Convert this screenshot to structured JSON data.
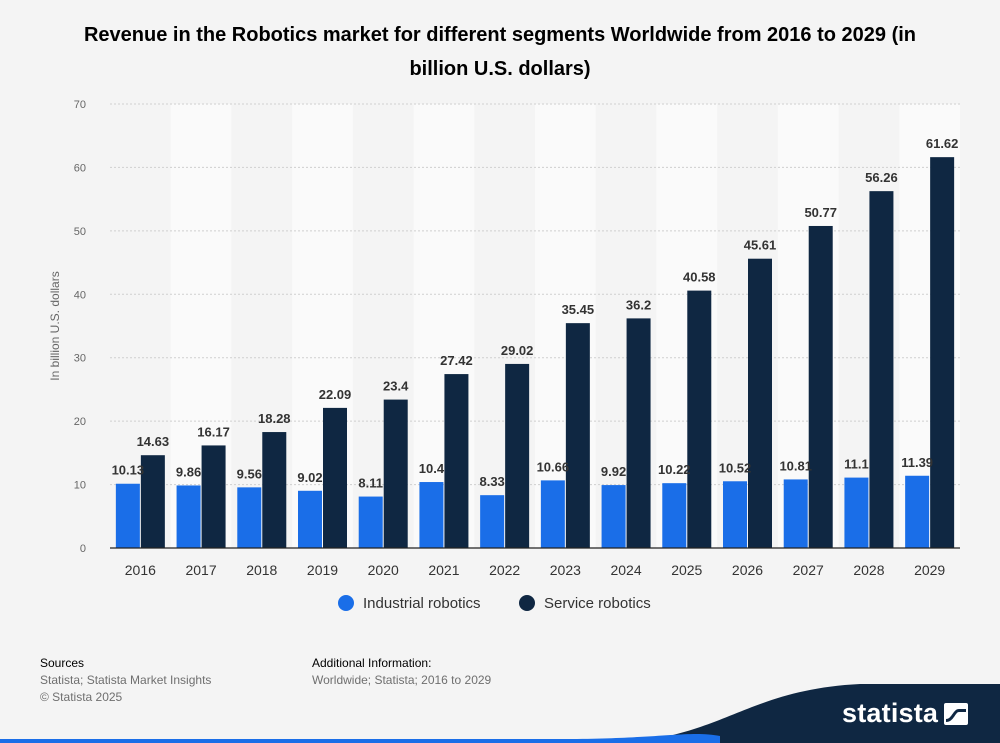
{
  "header": {
    "title": "Revenue in the Robotics market for different segments Worldwide from 2016 to 2029 (in billion U.S. dollars)"
  },
  "footer": {
    "sources_heading": "Sources",
    "sources_line1": "Statista; Statista Market Insights",
    "sources_line2": "© Statista 2025",
    "info_heading": "Additional Information:",
    "info_line1": "Worldwide; Statista; 2016 to 2029"
  },
  "brand": {
    "logo_text": "statista",
    "logo_icon": "statista-wave-icon"
  },
  "colors": {
    "industrial": "#1a6ee8",
    "service": "#0f2742",
    "grid": "#cfcfcf",
    "band": "#fafafa"
  },
  "chart_data": {
    "type": "bar",
    "title": "Revenue in the Robotics market for different segments Worldwide from 2016 to 2029 (in billion U.S. dollars)",
    "xlabel": "",
    "ylabel": "In billion U.S. dollars",
    "ylim": [
      0,
      70
    ],
    "yticks": [
      0,
      10,
      20,
      30,
      40,
      50,
      60,
      70
    ],
    "grid": true,
    "legend_position": "bottom",
    "categories": [
      "2016",
      "2017",
      "2018",
      "2019",
      "2020",
      "2021",
      "2022",
      "2023",
      "2024",
      "2025",
      "2026",
      "2027",
      "2028",
      "2029"
    ],
    "series": [
      {
        "name": "Industrial robotics",
        "values": [
          10.13,
          9.86,
          9.56,
          9.02,
          8.11,
          10.4,
          8.33,
          10.66,
          9.92,
          10.22,
          10.52,
          10.81,
          11.1,
          11.39
        ]
      },
      {
        "name": "Service robotics",
        "values": [
          14.63,
          16.17,
          18.28,
          22.09,
          23.4,
          27.42,
          29.02,
          35.45,
          36.2,
          40.58,
          45.61,
          50.77,
          56.26,
          61.62
        ]
      }
    ]
  }
}
